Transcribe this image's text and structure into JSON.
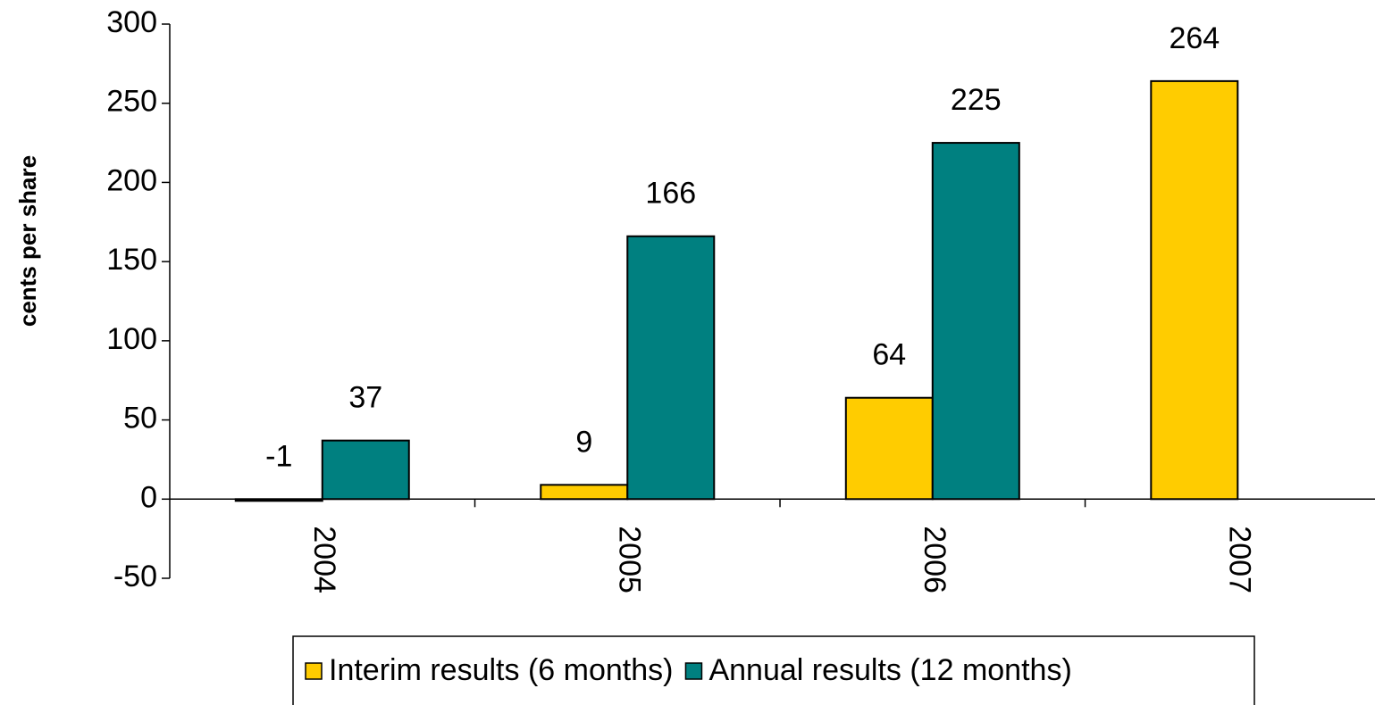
{
  "chart_data": {
    "type": "bar",
    "y_label": "cents per share",
    "categories": [
      "2004",
      "2005",
      "2006",
      "2007"
    ],
    "series": [
      {
        "name": "Interim results (6 months)",
        "color": "#ffcc00",
        "values": [
          -1,
          9,
          64,
          264
        ]
      },
      {
        "name": "Annual results (12 months)",
        "color": "#008080",
        "values": [
          37,
          166,
          225,
          null
        ]
      }
    ],
    "ylim": [
      -50,
      300
    ],
    "yticks": [
      -50,
      0,
      50,
      100,
      150,
      200,
      250,
      300
    ],
    "grid": false,
    "legend": "bottom"
  }
}
